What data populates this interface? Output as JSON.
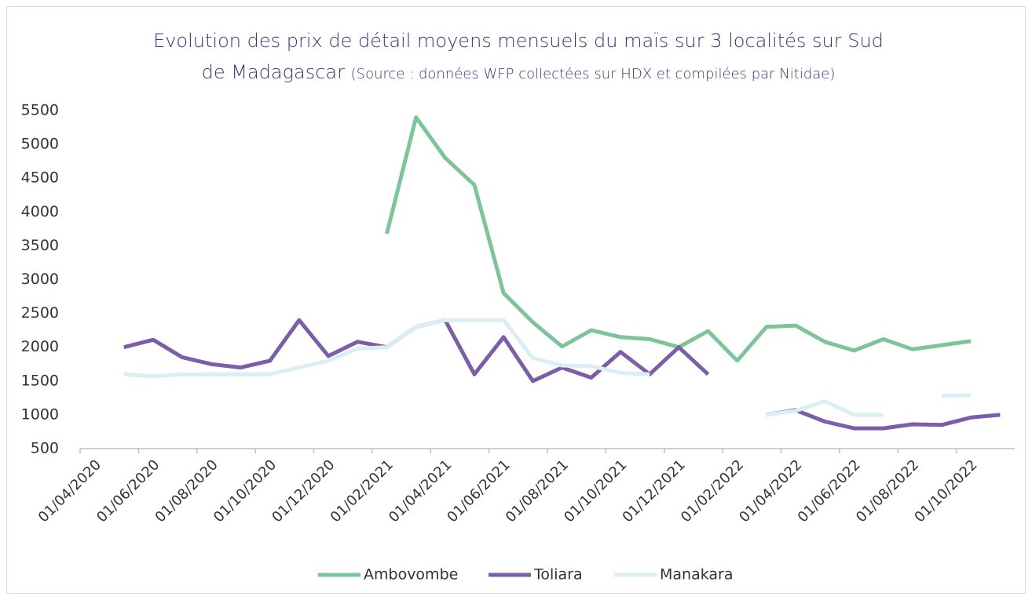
{
  "chart_data": {
    "type": "line",
    "title": "Evolution des prix de détail moyens mensuels du maïs sur 3 localités sur Sud de Madagascar",
    "subtitle": "(Source : données WFP collectées sur HDX et compilées par Nitidae)",
    "categories": [
      "01/04/2020",
      null,
      "01/06/2020",
      null,
      "01/08/2020",
      null,
      "01/10/2020",
      null,
      "01/12/2020",
      null,
      "01/02/2021",
      null,
      "01/04/2021",
      null,
      "01/06/2021",
      null,
      "01/08/2021",
      null,
      "01/10/2021",
      null,
      "01/12/2021",
      null,
      "01/02/2022",
      null,
      "01/04/2022",
      null,
      "01/06/2022",
      null,
      "01/08/2022",
      null,
      "01/10/2022",
      null
    ],
    "series": [
      {
        "name": "Ambovombe",
        "color": "#7dc49a",
        "values": [
          null,
          null,
          null,
          null,
          null,
          null,
          null,
          null,
          null,
          null,
          3680,
          5400,
          4800,
          4400,
          2800,
          2370,
          2010,
          2250,
          2150,
          2120,
          2000,
          2240,
          1800,
          2300,
          2320,
          2080,
          1950,
          2120,
          1970,
          2030,
          2090,
          null
        ]
      },
      {
        "name": "Toliara",
        "color": "#7b5ea8",
        "values": [
          null,
          2000,
          2110,
          1850,
          1750,
          1700,
          1800,
          2400,
          1870,
          2080,
          2000,
          2300,
          2400,
          1600,
          2150,
          1500,
          1700,
          1550,
          1930,
          1600,
          2000,
          1600,
          null,
          1000,
          1070,
          900,
          800,
          800,
          860,
          850,
          960,
          1000
        ]
      },
      {
        "name": "Manakara",
        "color": "#dbeef4",
        "values": [
          null,
          1600,
          1570,
          1600,
          1600,
          1600,
          1600,
          1700,
          1800,
          1980,
          2000,
          2300,
          2400,
          2400,
          2400,
          1840,
          1730,
          1720,
          1620,
          1600,
          null,
          null,
          null,
          1000,
          1060,
          1200,
          1000,
          1000,
          null,
          1280,
          1290,
          null
        ]
      }
    ],
    "ylim": [
      500,
      5500
    ],
    "yticks": [
      500,
      1000,
      1500,
      2000,
      2500,
      3000,
      3500,
      4000,
      4500,
      5000,
      5500
    ],
    "grid": false,
    "legend": "bottom"
  }
}
